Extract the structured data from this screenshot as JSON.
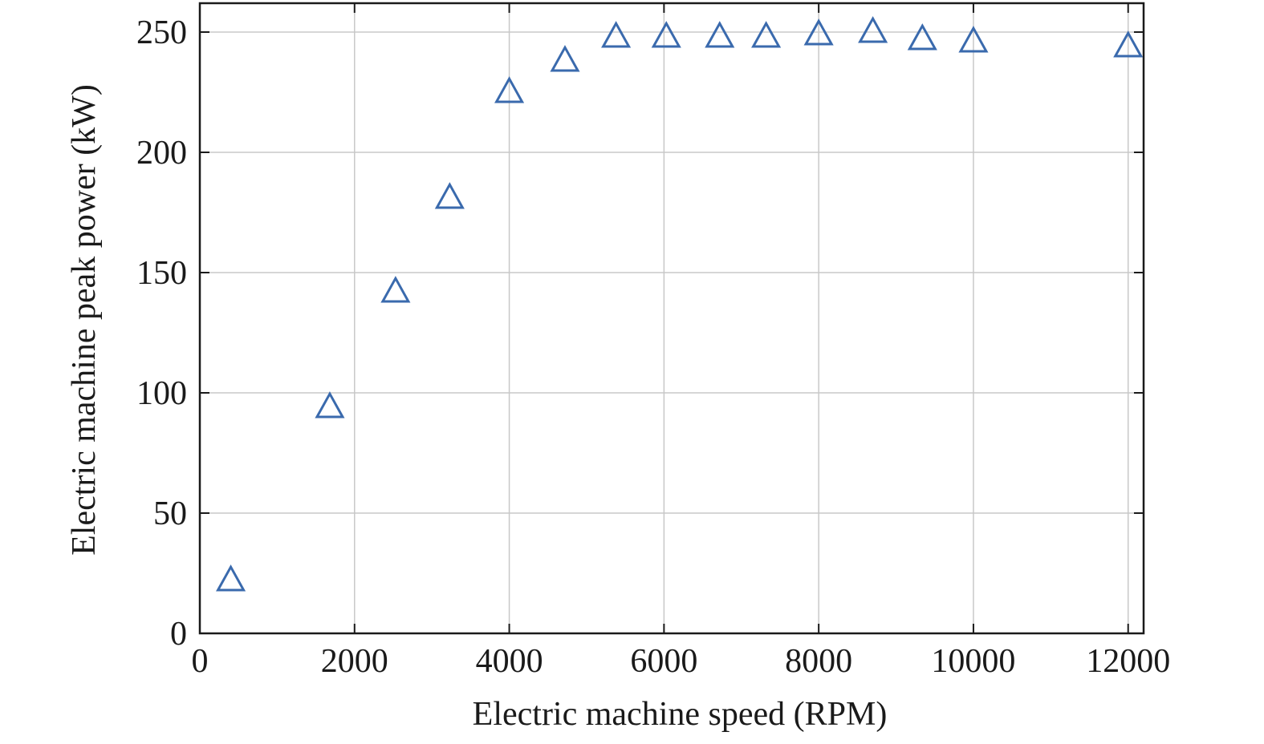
{
  "colors": {
    "marker": "#3a6aad",
    "grid": "#c8c8c8",
    "axis": "#1a1a1a",
    "background": "#ffffff"
  },
  "chart_data": {
    "type": "scatter",
    "title": "",
    "xlabel": "Electric machine speed (RPM)",
    "ylabel": "Electric machine peak power (kW)",
    "xlim": [
      0,
      12200
    ],
    "ylim": [
      0,
      262
    ],
    "xticks": [
      0,
      2000,
      4000,
      6000,
      8000,
      10000,
      12000
    ],
    "yticks": [
      0,
      50,
      100,
      150,
      200,
      250
    ],
    "xtick_labels": [
      "0",
      "2000",
      "4000",
      "6000",
      "8000",
      "10000",
      "12000"
    ],
    "ytick_labels": [
      "0",
      "50",
      "100",
      "150",
      "200",
      "250"
    ],
    "grid": true,
    "marker": "triangle-open",
    "series": [
      {
        "name": "",
        "x": [
          400,
          1680,
          2530,
          3230,
          4000,
          4720,
          5380,
          6030,
          6720,
          7320,
          8000,
          8700,
          9340,
          10000,
          12000
        ],
        "y": [
          22,
          94,
          142,
          181,
          225,
          238,
          248,
          248,
          248,
          248,
          249,
          250,
          247,
          246,
          244
        ]
      }
    ]
  }
}
